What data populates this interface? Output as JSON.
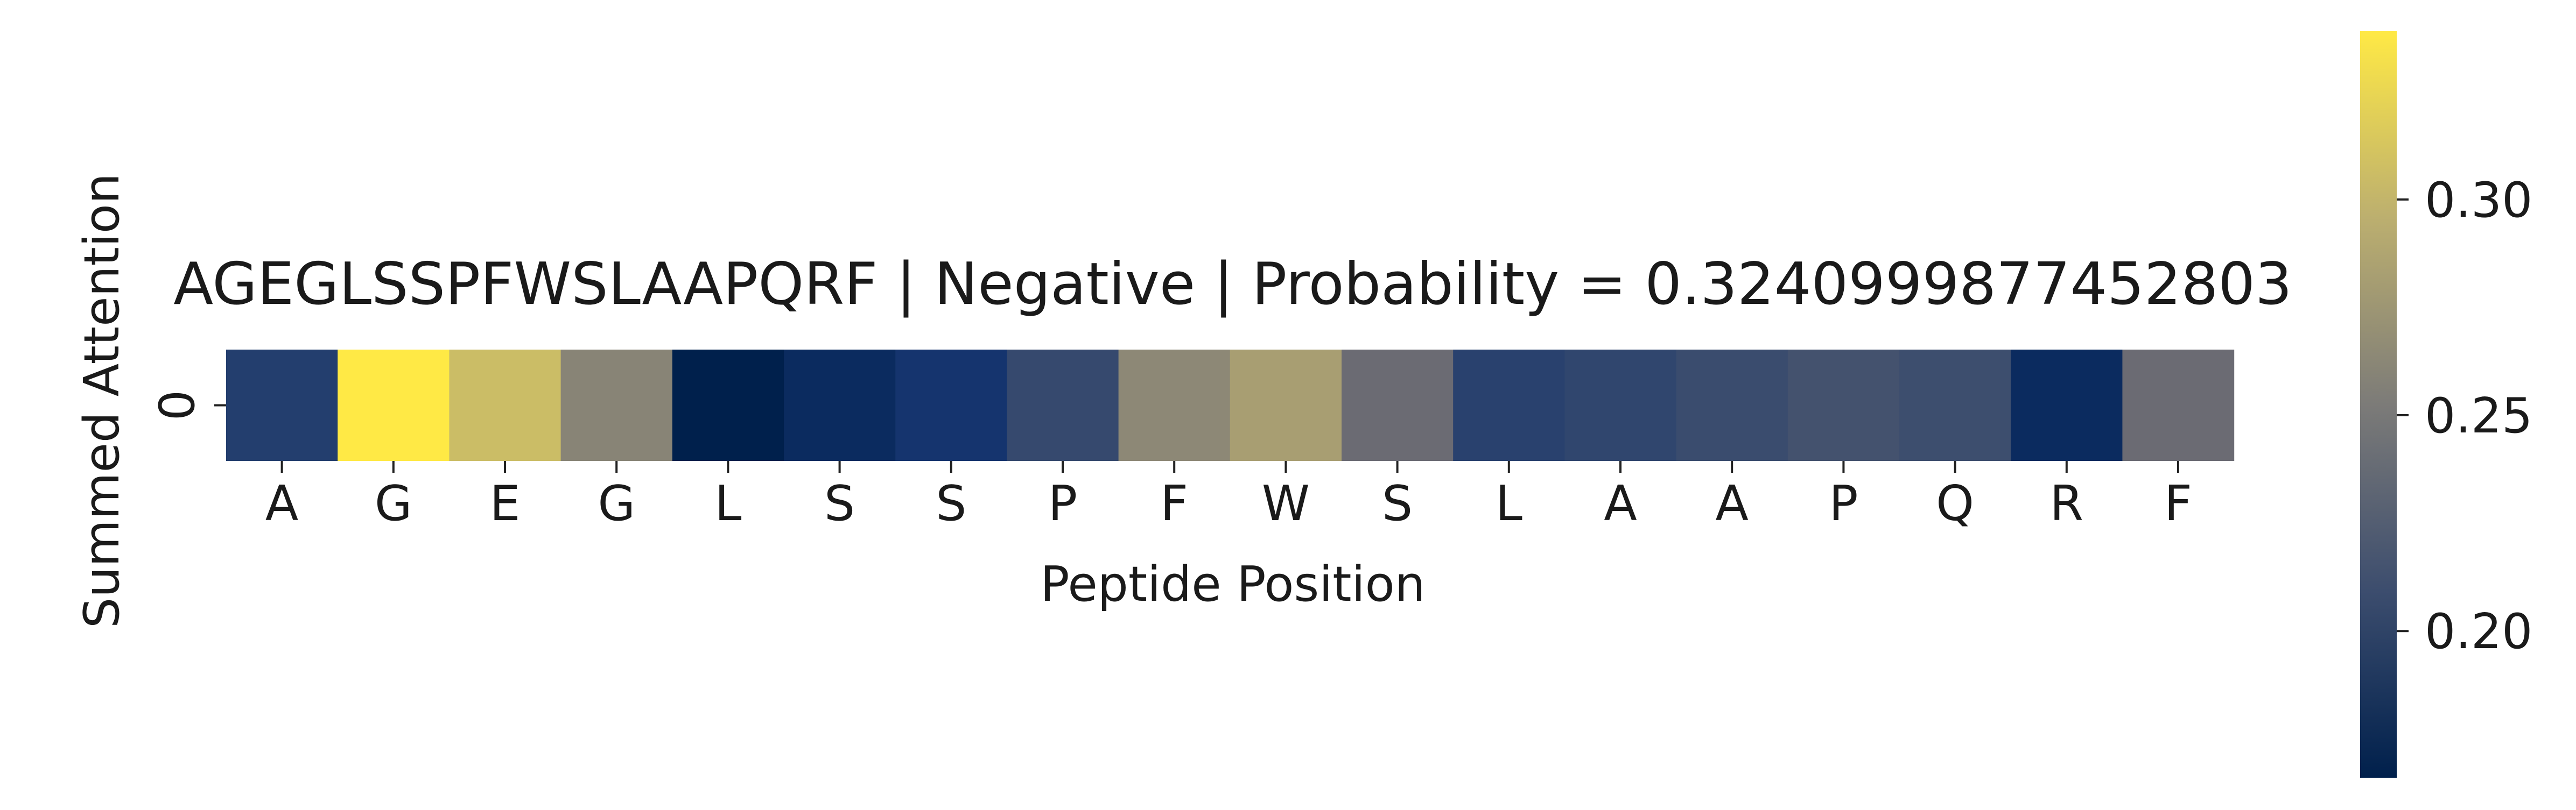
{
  "chart_data": {
    "type": "heatmap",
    "title": "AGEGLSSPFWSLAAPQRF | Negative | Probability = 0.3240999877452803",
    "xlabel": "Peptide Position",
    "ylabel": "Summed Attention",
    "x_tick_labels": [
      "A",
      "G",
      "E",
      "G",
      "L",
      "S",
      "S",
      "P",
      "F",
      "W",
      "S",
      "L",
      "A",
      "A",
      "P",
      "Q",
      "R",
      "F"
    ],
    "y_tick_labels": [
      "0"
    ],
    "values": [
      [
        0.196,
        0.339,
        0.305,
        0.262,
        0.166,
        0.178,
        0.188,
        0.206,
        0.266,
        0.284,
        0.238,
        0.199,
        0.203,
        0.208,
        0.214,
        0.21,
        0.178,
        0.238
      ]
    ],
    "colormap": "cividis",
    "colorbar": {
      "vmin": 0.166,
      "vmax": 0.339,
      "ticks": [
        0.2,
        0.25,
        0.3
      ],
      "tick_labels": [
        "0.20",
        "0.25",
        "0.30"
      ]
    },
    "grid": false,
    "legend": "colorbar-right"
  }
}
